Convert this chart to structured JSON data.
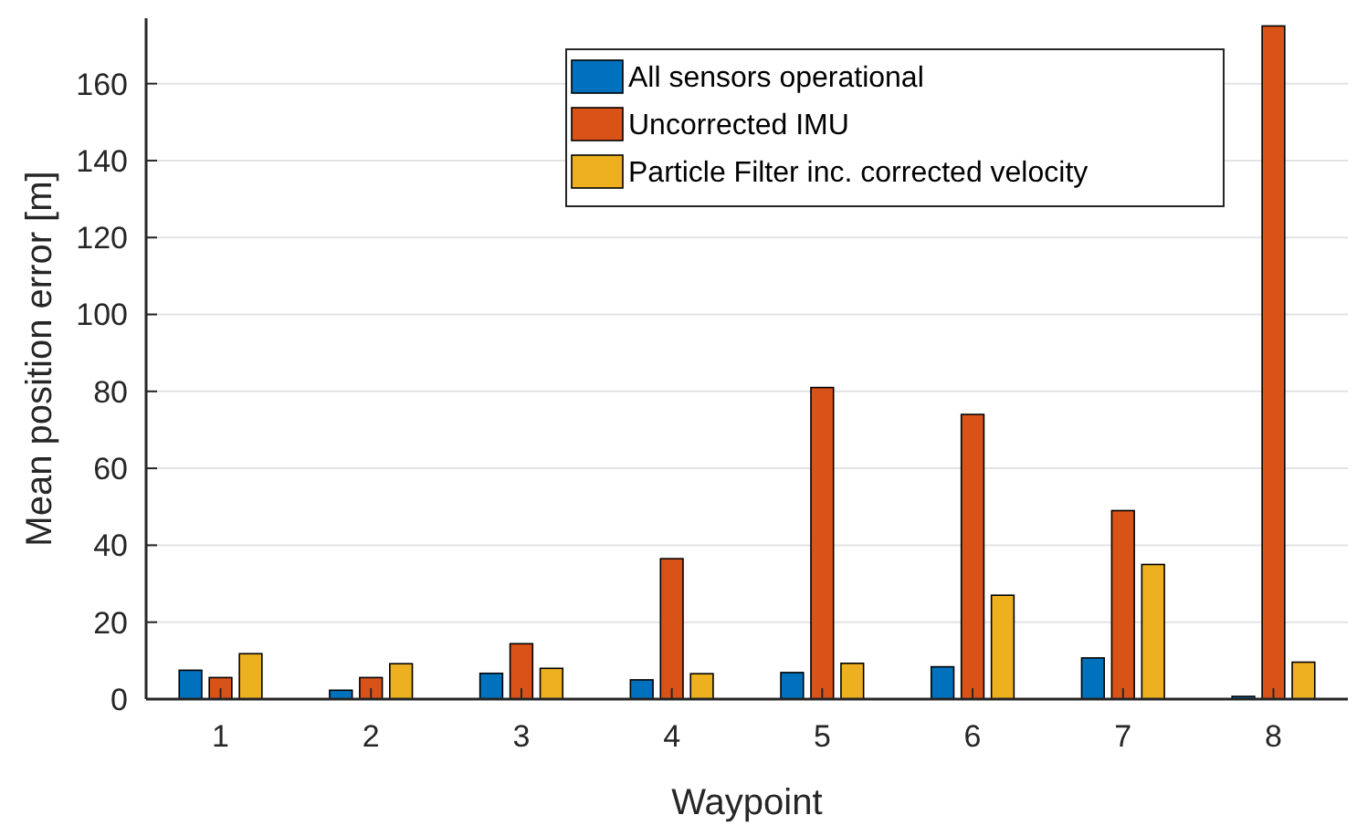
{
  "chart_data": {
    "type": "bar",
    "xlabel": "Waypoint",
    "ylabel": "Mean position error [m]",
    "categories": [
      "1",
      "2",
      "3",
      "4",
      "5",
      "6",
      "7",
      "8"
    ],
    "series": [
      {
        "name": "All sensors operational",
        "color": "#0072bd",
        "values": [
          7.5,
          2.3,
          6.7,
          5,
          6.9,
          8.4,
          10.7,
          0.7
        ]
      },
      {
        "name": "Uncorrected IMU",
        "color": "#d95319",
        "values": [
          5.6,
          5.6,
          14.4,
          36.5,
          81,
          74,
          49,
          175
        ]
      },
      {
        "name": "Particle Filter inc. corrected velocity",
        "color": "#edb120",
        "values": [
          11.8,
          9.2,
          8,
          6.6,
          9.3,
          27,
          35,
          9.6
        ]
      }
    ],
    "ylim": [
      0,
      177
    ],
    "yticks": [
      0,
      20,
      40,
      60,
      80,
      100,
      120,
      140,
      160
    ],
    "grid": "y",
    "legend": "top right"
  }
}
